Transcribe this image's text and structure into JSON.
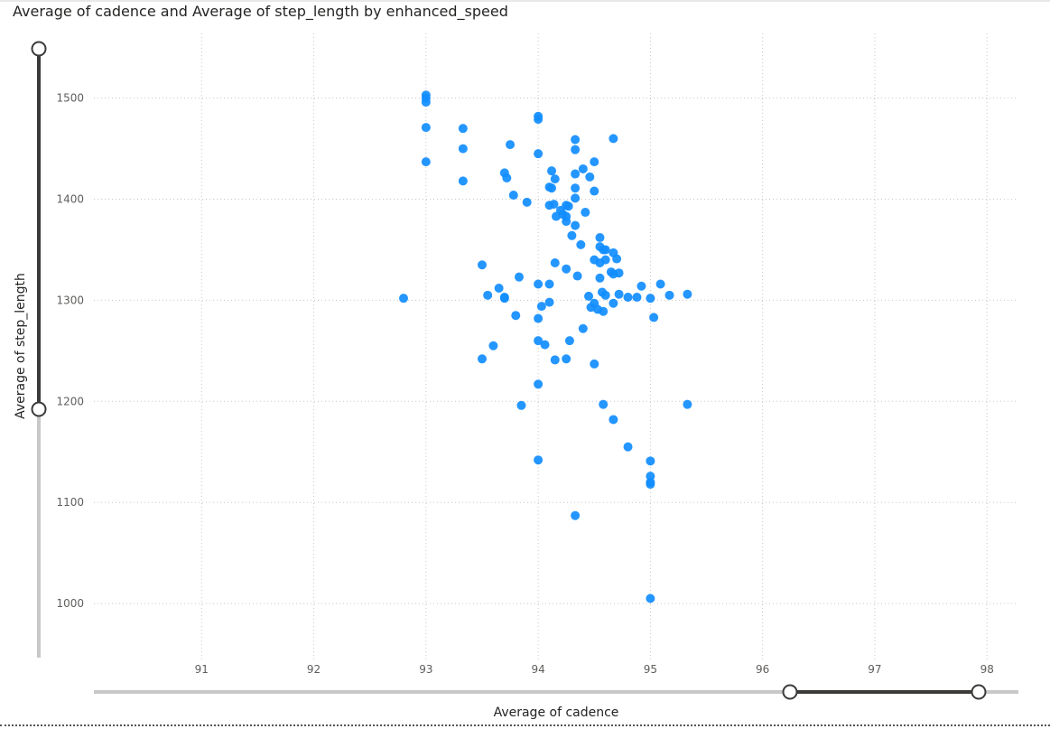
{
  "title": "Average of cadence and Average of step_length by enhanced_speed",
  "colors": {
    "point": "#118DFF",
    "grid": "#c8c8c8",
    "slider_track": "#c8c8c8",
    "slider_active": "#3b3a39"
  },
  "chart_data": {
    "type": "scatter",
    "title": "Average of cadence and Average of step_length by enhanced_speed",
    "xlabel": "Average of cadence",
    "ylabel": "Average of step_length",
    "xlim": [
      90.04,
      98.28
    ],
    "ylim": [
      942,
      1564
    ],
    "xticks": [
      91,
      92,
      93,
      94,
      95,
      96,
      97,
      98
    ],
    "yticks": [
      1000,
      1100,
      1200,
      1300,
      1400,
      1500
    ],
    "grid": true,
    "points": [
      [
        93.0,
        1503
      ],
      [
        93.0,
        1500
      ],
      [
        93.0,
        1496
      ],
      [
        93.0,
        1471
      ],
      [
        93.0,
        1437
      ],
      [
        92.8,
        1302
      ],
      [
        93.33,
        1470
      ],
      [
        93.33,
        1450
      ],
      [
        93.33,
        1418
      ],
      [
        93.5,
        1335
      ],
      [
        93.5,
        1242
      ],
      [
        93.55,
        1305
      ],
      [
        93.6,
        1255
      ],
      [
        93.65,
        1312
      ],
      [
        93.7,
        1426
      ],
      [
        93.72,
        1421
      ],
      [
        93.7,
        1303
      ],
      [
        93.7,
        1302
      ],
      [
        93.75,
        1454
      ],
      [
        93.78,
        1404
      ],
      [
        93.8,
        1285
      ],
      [
        93.83,
        1323
      ],
      [
        93.85,
        1196
      ],
      [
        93.9,
        1397
      ],
      [
        94.0,
        1482
      ],
      [
        94.0,
        1479
      ],
      [
        94.0,
        1445
      ],
      [
        94.0,
        1316
      ],
      [
        94.0,
        1282
      ],
      [
        94.0,
        1260
      ],
      [
        94.0,
        1217
      ],
      [
        94.0,
        1142
      ],
      [
        94.03,
        1294
      ],
      [
        94.06,
        1256
      ],
      [
        94.1,
        1412
      ],
      [
        94.1,
        1394
      ],
      [
        94.1,
        1316
      ],
      [
        94.1,
        1298
      ],
      [
        94.12,
        1428
      ],
      [
        94.12,
        1411
      ],
      [
        94.14,
        1395
      ],
      [
        94.15,
        1420
      ],
      [
        94.15,
        1337
      ],
      [
        94.15,
        1241
      ],
      [
        94.16,
        1383
      ],
      [
        94.2,
        1389
      ],
      [
        94.22,
        1385
      ],
      [
        94.25,
        1394
      ],
      [
        94.25,
        1383
      ],
      [
        94.25,
        1378
      ],
      [
        94.25,
        1331
      ],
      [
        94.25,
        1242
      ],
      [
        94.27,
        1393
      ],
      [
        94.28,
        1260
      ],
      [
        94.3,
        1364
      ],
      [
        94.33,
        1459
      ],
      [
        94.33,
        1449
      ],
      [
        94.33,
        1425
      ],
      [
        94.33,
        1411
      ],
      [
        94.33,
        1401
      ],
      [
        94.33,
        1374
      ],
      [
        94.33,
        1087
      ],
      [
        94.35,
        1324
      ],
      [
        94.38,
        1355
      ],
      [
        94.4,
        1430
      ],
      [
        94.4,
        1272
      ],
      [
        94.42,
        1387
      ],
      [
        94.45,
        1304
      ],
      [
        94.46,
        1422
      ],
      [
        94.47,
        1293
      ],
      [
        94.5,
        1437
      ],
      [
        94.5,
        1408
      ],
      [
        94.5,
        1340
      ],
      [
        94.5,
        1297
      ],
      [
        94.5,
        1237
      ],
      [
        94.53,
        1291
      ],
      [
        94.55,
        1362
      ],
      [
        94.55,
        1353
      ],
      [
        94.55,
        1337
      ],
      [
        94.55,
        1322
      ],
      [
        94.57,
        1308
      ],
      [
        94.58,
        1350
      ],
      [
        94.58,
        1289
      ],
      [
        94.58,
        1197
      ],
      [
        94.6,
        1350
      ],
      [
        94.6,
        1340
      ],
      [
        94.6,
        1305
      ],
      [
        94.65,
        1328
      ],
      [
        94.67,
        1460
      ],
      [
        94.67,
        1347
      ],
      [
        94.67,
        1326
      ],
      [
        94.67,
        1297
      ],
      [
        94.67,
        1182
      ],
      [
        94.7,
        1341
      ],
      [
        94.72,
        1327
      ],
      [
        94.72,
        1306
      ],
      [
        94.8,
        1303
      ],
      [
        94.8,
        1155
      ],
      [
        94.88,
        1303
      ],
      [
        94.92,
        1314
      ],
      [
        95.0,
        1302
      ],
      [
        95.0,
        1141
      ],
      [
        95.0,
        1126
      ],
      [
        95.0,
        1120
      ],
      [
        95.0,
        1118
      ],
      [
        95.0,
        1005
      ],
      [
        95.03,
        1283
      ],
      [
        95.09,
        1316
      ],
      [
        95.17,
        1305
      ],
      [
        95.33,
        1306
      ],
      [
        95.33,
        1197
      ]
    ]
  }
}
